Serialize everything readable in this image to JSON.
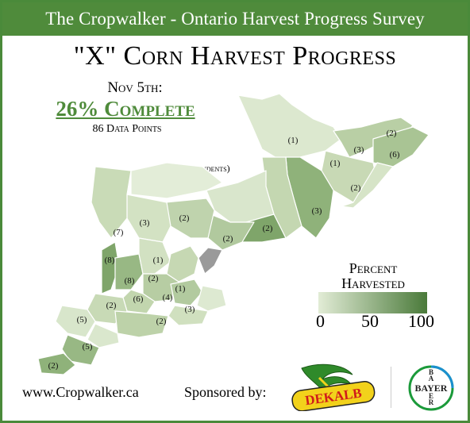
{
  "banner": {
    "text": "The Cropwalker - Ontario Harvest Progress Survey"
  },
  "title": "\"X\" Corn Harvest Progress",
  "summary": {
    "date": "Nov 5th:",
    "complete": "26% Complete",
    "data_points": "86 Data Points",
    "respondents_note": "(# of Respondents)"
  },
  "legend": {
    "title_line1": "Percent",
    "title_line2": "Harvested",
    "ticks": [
      "0",
      "50",
      "100"
    ],
    "color_low": "#e2ecd6",
    "color_high": "#4a7a3a"
  },
  "regions": [
    {
      "label": "(1)"
    },
    {
      "label": "(2)"
    },
    {
      "label": "(3)"
    },
    {
      "label": "(6)"
    },
    {
      "label": "(1)"
    },
    {
      "label": "(2)"
    },
    {
      "label": "(3)"
    },
    {
      "label": "(2)"
    },
    {
      "label": "(2)"
    },
    {
      "label": "(2)"
    },
    {
      "label": "(3)"
    },
    {
      "label": "(7)"
    },
    {
      "label": "(8)"
    },
    {
      "label": "(1)"
    },
    {
      "label": "(8)"
    },
    {
      "label": "(2)"
    },
    {
      "label": "(1)"
    },
    {
      "label": "(6)"
    },
    {
      "label": "(4)"
    },
    {
      "label": "(2)"
    },
    {
      "label": "(3)"
    },
    {
      "label": "(5)"
    },
    {
      "label": "(2)"
    },
    {
      "label": "(5)"
    },
    {
      "label": "(2)"
    }
  ],
  "footer": {
    "website": "www.Cropwalker.ca",
    "sponsored_by": "Sponsored by:",
    "sponsor1": "DEKALB",
    "sponsor2": "BAYER"
  },
  "colors": {
    "brand_green": "#4f8b3b",
    "no_data_gray": "#9a9a9a"
  }
}
